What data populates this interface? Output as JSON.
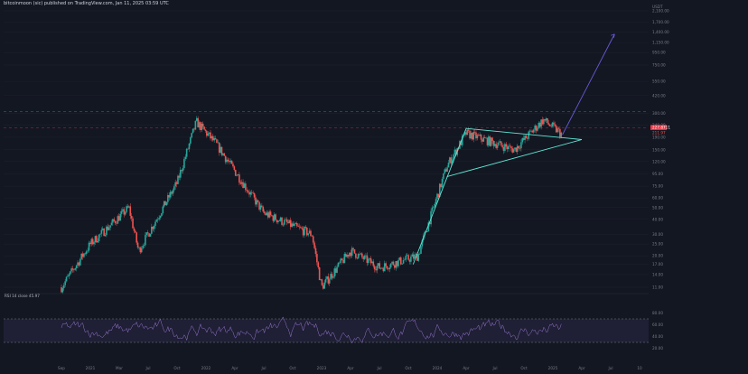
{
  "header": {
    "text": "bitcoinmoon (sic) published on TradingView.com, Jan 11, 2025 03:59 UTC"
  },
  "currency": "USDT",
  "colors": {
    "bg": "#131722",
    "up": "#26a69a",
    "down": "#ef5350",
    "trend": "#5ee8d6",
    "arrow": "#6a58d8",
    "rsi": "#9575cd",
    "price_tag": "#f23645"
  },
  "chart_data": [
    {
      "type": "candlestick",
      "title": "",
      "price_axis_ticks": [
        "2,100.00",
        "1,700.00",
        "1,400.00",
        "1,150.00",
        "950.00",
        "750.00",
        "550.00",
        "420.00",
        "300.00",
        "240.00",
        "190.00",
        "150.00",
        "120.00",
        "95.00",
        "75.00",
        "60.00",
        "50.00",
        "40.00",
        "30.00",
        "25.00",
        "20.00",
        "17.00",
        "14.00",
        "11.00"
      ],
      "time_axis_ticks": [
        "Sep",
        "2021",
        "Mar",
        "Jul",
        "Oct",
        "2022",
        "Apr",
        "Jul",
        "Oct",
        "2023",
        "Apr",
        "Jul",
        "Oct",
        "2024",
        "Apr",
        "Jul",
        "Oct",
        "2025",
        "Apr",
        "Jul",
        "10"
      ],
      "scale": "log",
      "current_price_label": "227.8711",
      "last_price_label": "211.97",
      "horizontal_levels": [
        310,
        228
      ],
      "key_points": [
        {
          "date": "Sep 2020",
          "price": 11
        },
        {
          "date": "Dec 2020",
          "price": 25
        },
        {
          "date": "Apr 2021",
          "price": 50
        },
        {
          "date": "May 2021",
          "price": 22
        },
        {
          "date": "Sep 2021",
          "price": 80
        },
        {
          "date": "Nov 2021",
          "price": 255
        },
        {
          "date": "Jan 2022",
          "price": 170
        },
        {
          "date": "Jun 2022",
          "price": 45
        },
        {
          "date": "Nov 2022",
          "price": 30
        },
        {
          "date": "Dec 2022",
          "price": 11
        },
        {
          "date": "Mar 2023",
          "price": 22
        },
        {
          "date": "Jun 2023",
          "price": 16
        },
        {
          "date": "Oct 2023",
          "price": 20
        },
        {
          "date": "Jan 2024",
          "price": 110
        },
        {
          "date": "Mar 2024",
          "price": 205
        },
        {
          "date": "Aug 2024",
          "price": 150
        },
        {
          "date": "Nov 2024",
          "price": 265
        },
        {
          "date": "Jan 2025",
          "price": 200
        }
      ],
      "pattern": "symmetrical-triangle",
      "projection": "upward-arrow"
    },
    {
      "type": "line",
      "title": "RSI 14 close",
      "label_value": "45.97",
      "levels": [
        70,
        30
      ],
      "ticks": [
        "80.00",
        "60.00",
        "40.00",
        "20.00"
      ],
      "ylim": [
        0,
        100
      ]
    }
  ]
}
